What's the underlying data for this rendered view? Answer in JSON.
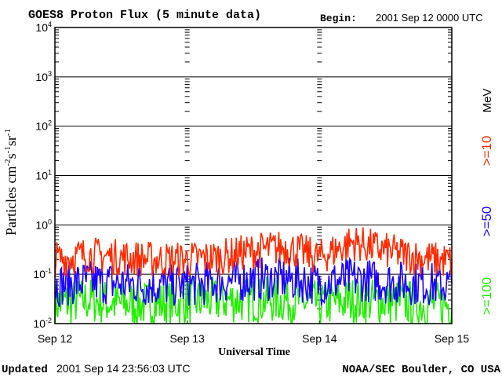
{
  "header": {
    "title": "GOES8 Proton Flux (5 minute data)",
    "begin_label": "Begin:",
    "begin_value": "2001 Sep 12 0000 UTC"
  },
  "footer": {
    "updated_label": "Updated",
    "updated_value": "2001 Sep 14 23:56:03 UTC",
    "credit": "NOAA/SEC Boulder, CO USA"
  },
  "colors": {
    "ge10": "#ff2a00",
    "ge50": "#1a00ff",
    "ge100": "#22ee00",
    "frame": "#000000"
  },
  "chart_data": {
    "type": "line",
    "title": "GOES8 Proton Flux (5 minute data)",
    "xlabel": "Universal Time",
    "ylabel": "Particles cm-2s-1sr-1",
    "y_scale": "log",
    "ylim": [
      0.01,
      10000
    ],
    "y_ticks": [
      {
        "base": "10",
        "exp": "-2"
      },
      {
        "base": "10",
        "exp": "-1"
      },
      {
        "base": "10",
        "exp": "0"
      },
      {
        "base": "10",
        "exp": "1"
      },
      {
        "base": "10",
        "exp": "2"
      },
      {
        "base": "10",
        "exp": "3"
      },
      {
        "base": "10",
        "exp": "4"
      }
    ],
    "x_ticks": [
      "Sep 12",
      "Sep 13",
      "Sep 14",
      "Sep 15"
    ],
    "xlim": [
      "2001-09-12 00:00",
      "2001-09-15 00:00"
    ],
    "legend": {
      "unit": "MeV",
      "entries": [
        ">=10",
        ">=50",
        ">=100"
      ]
    },
    "series": [
      {
        "name": ">=10",
        "x": [
          "2001-09-12 00:00",
          "2001-09-12 06:00",
          "2001-09-12 12:00",
          "2001-09-12 18:00",
          "2001-09-13 00:00",
          "2001-09-13 06:00",
          "2001-09-13 12:00",
          "2001-09-13 18:00",
          "2001-09-14 00:00",
          "2001-09-14 06:00",
          "2001-09-14 12:00",
          "2001-09-14 18:00",
          "2001-09-15 00:00"
        ],
        "values": [
          0.2,
          0.25,
          0.22,
          0.2,
          0.2,
          0.22,
          0.3,
          0.35,
          0.22,
          0.45,
          0.3,
          0.22,
          0.18
        ]
      },
      {
        "name": ">=50",
        "x": [
          "2001-09-12 00:00",
          "2001-09-12 06:00",
          "2001-09-12 12:00",
          "2001-09-12 18:00",
          "2001-09-13 00:00",
          "2001-09-13 06:00",
          "2001-09-13 12:00",
          "2001-09-13 18:00",
          "2001-09-14 00:00",
          "2001-09-14 06:00",
          "2001-09-14 12:00",
          "2001-09-14 18:00",
          "2001-09-15 00:00"
        ],
        "values": [
          0.06,
          0.07,
          0.065,
          0.06,
          0.06,
          0.07,
          0.08,
          0.08,
          0.065,
          0.08,
          0.07,
          0.065,
          0.06
        ]
      },
      {
        "name": ">=100",
        "x": [
          "2001-09-12 00:00",
          "2001-09-12 06:00",
          "2001-09-12 12:00",
          "2001-09-12 18:00",
          "2001-09-13 00:00",
          "2001-09-13 06:00",
          "2001-09-13 12:00",
          "2001-09-13 18:00",
          "2001-09-14 00:00",
          "2001-09-14 06:00",
          "2001-09-14 12:00",
          "2001-09-14 18:00",
          "2001-09-15 00:00"
        ],
        "values": [
          0.025,
          0.03,
          0.025,
          0.025,
          0.028,
          0.03,
          0.03,
          0.03,
          0.025,
          0.03,
          0.028,
          0.025,
          0.025
        ]
      }
    ],
    "grid": true
  }
}
